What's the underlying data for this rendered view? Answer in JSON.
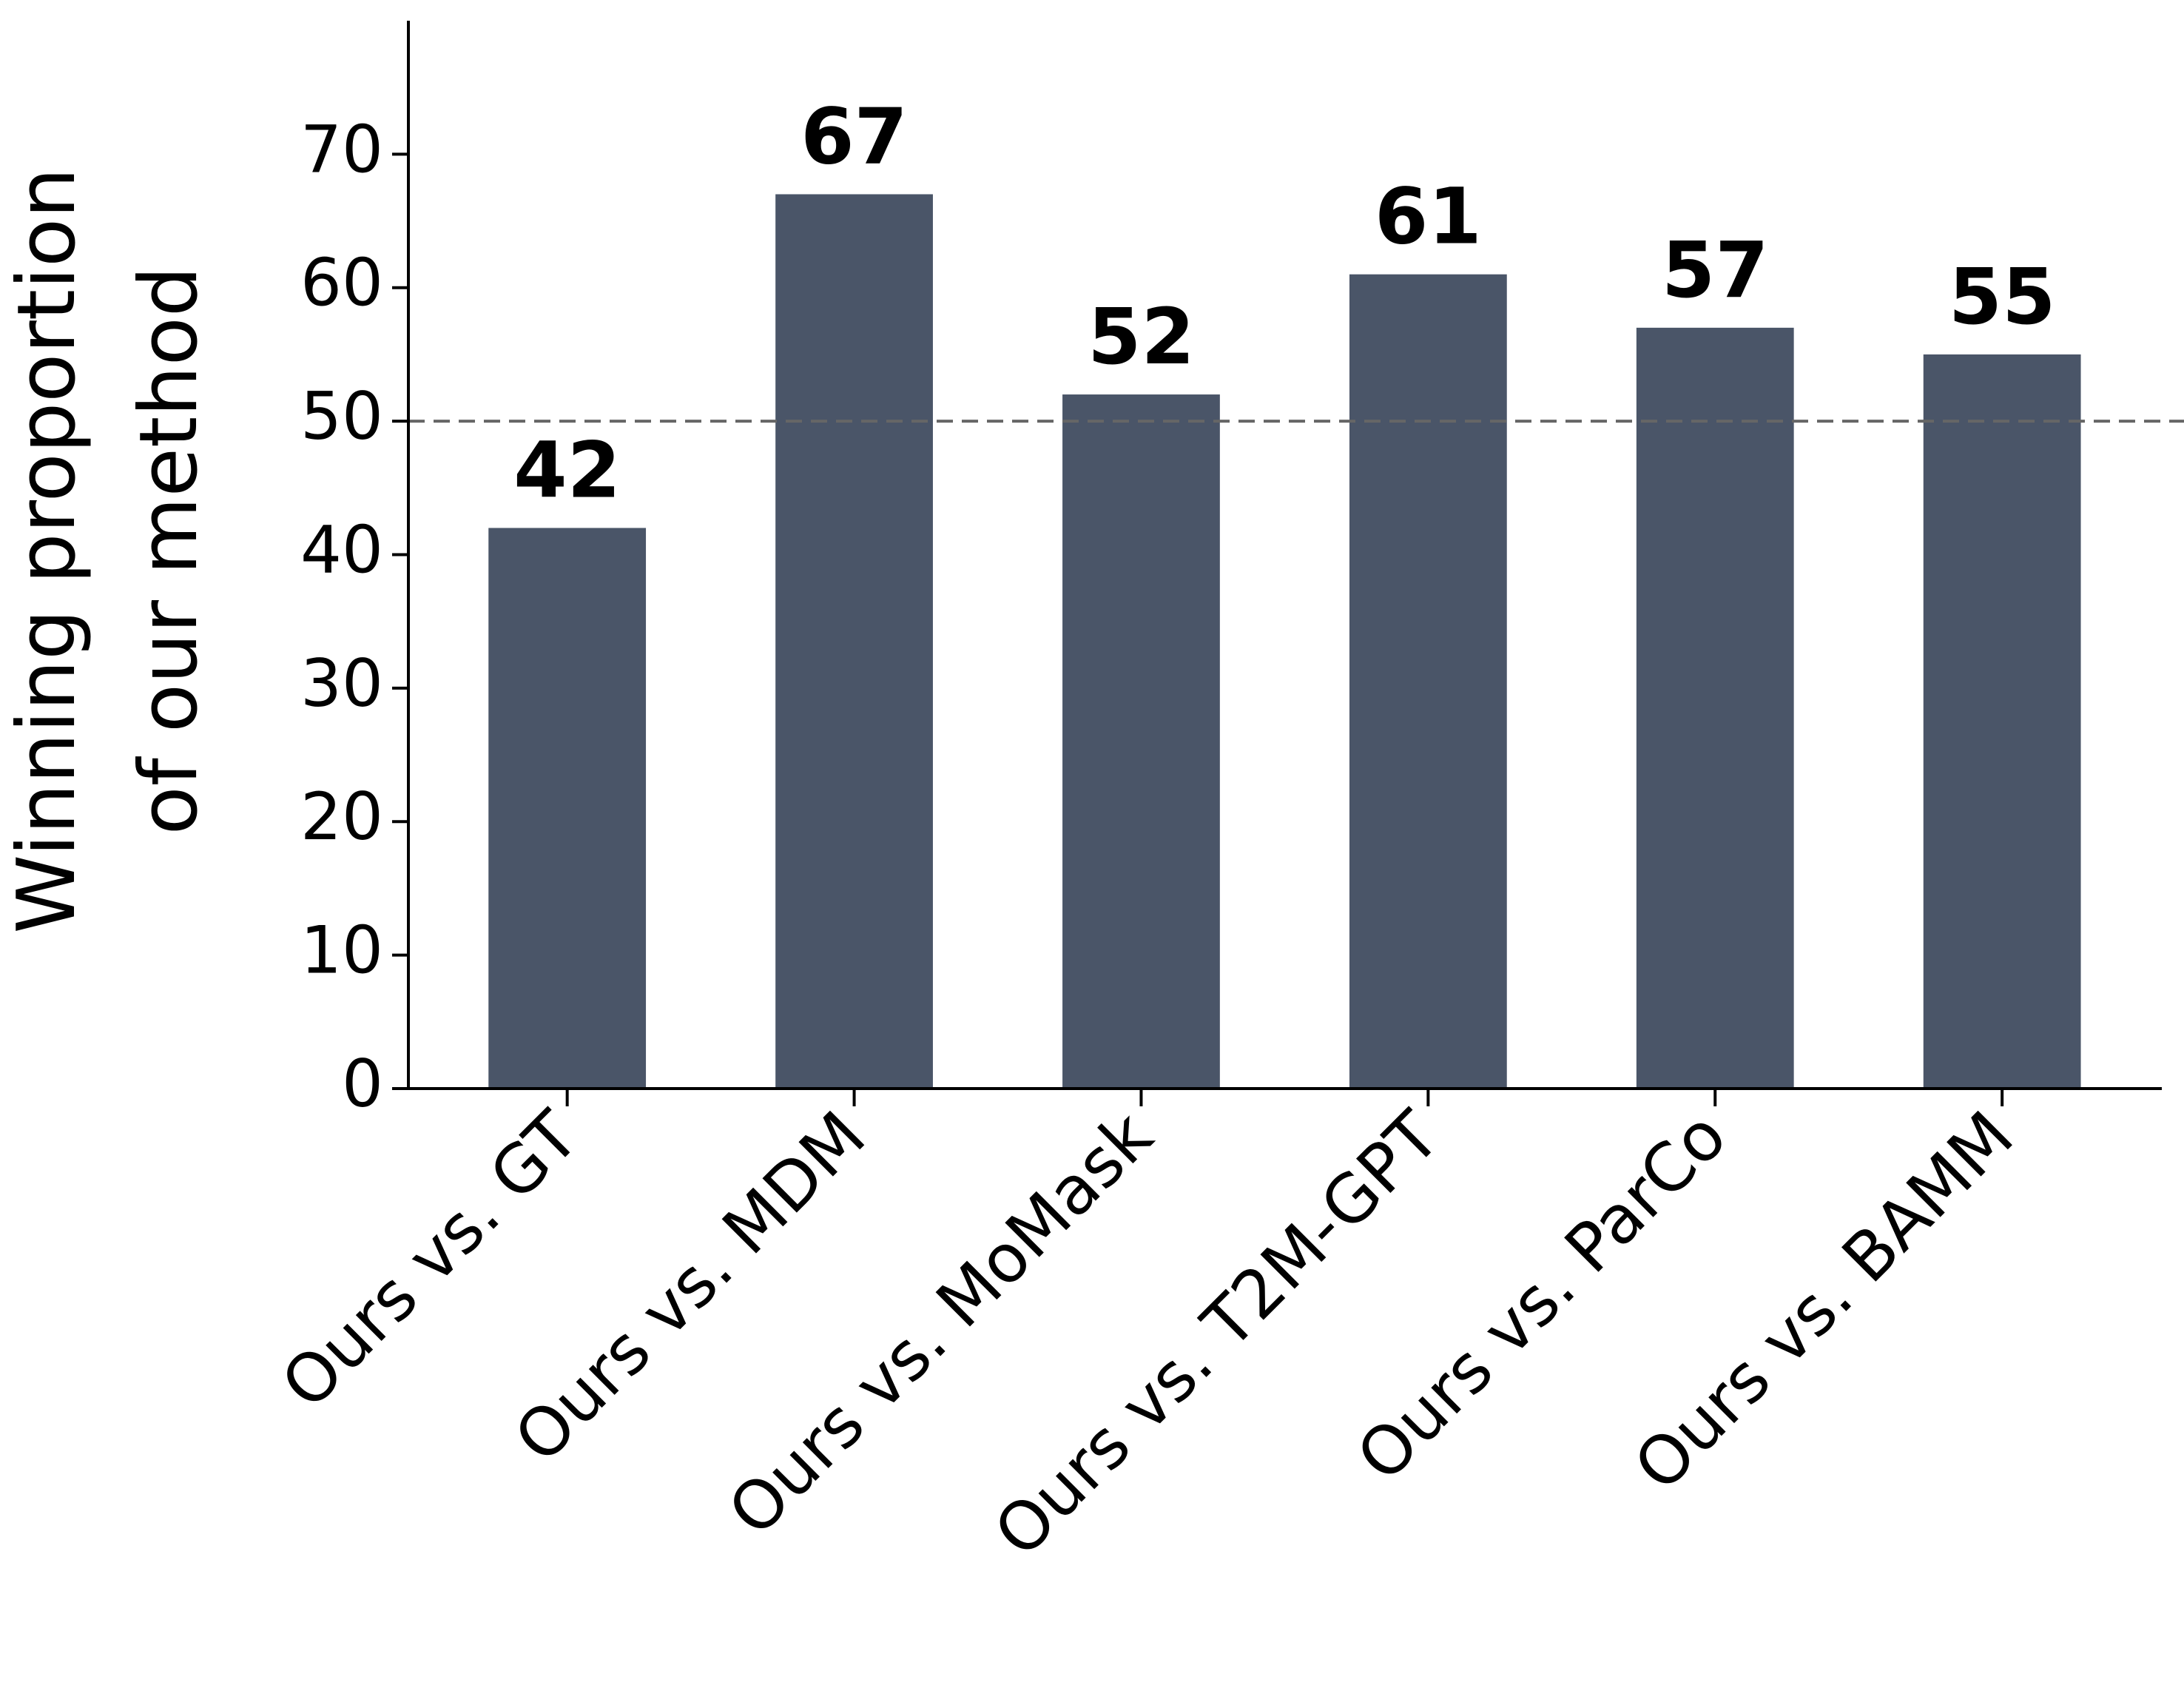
{
  "chart_data": {
    "type": "bar",
    "ylabel": [
      "Winning proportion",
      "of our method"
    ],
    "categories": [
      "Ours vs. GT",
      "Ours vs. MDM",
      "Ours vs. MoMask",
      "Ours vs. T2M-GPT",
      "Ours vs. ParCo",
      "Ours vs. BAMM"
    ],
    "values": [
      42,
      67,
      52,
      61,
      57,
      55
    ],
    "color": "#4a5568",
    "ylim": [
      0,
      80
    ],
    "yticks": [
      0,
      10,
      20,
      30,
      40,
      50,
      60,
      70
    ],
    "reference_line": 50
  }
}
